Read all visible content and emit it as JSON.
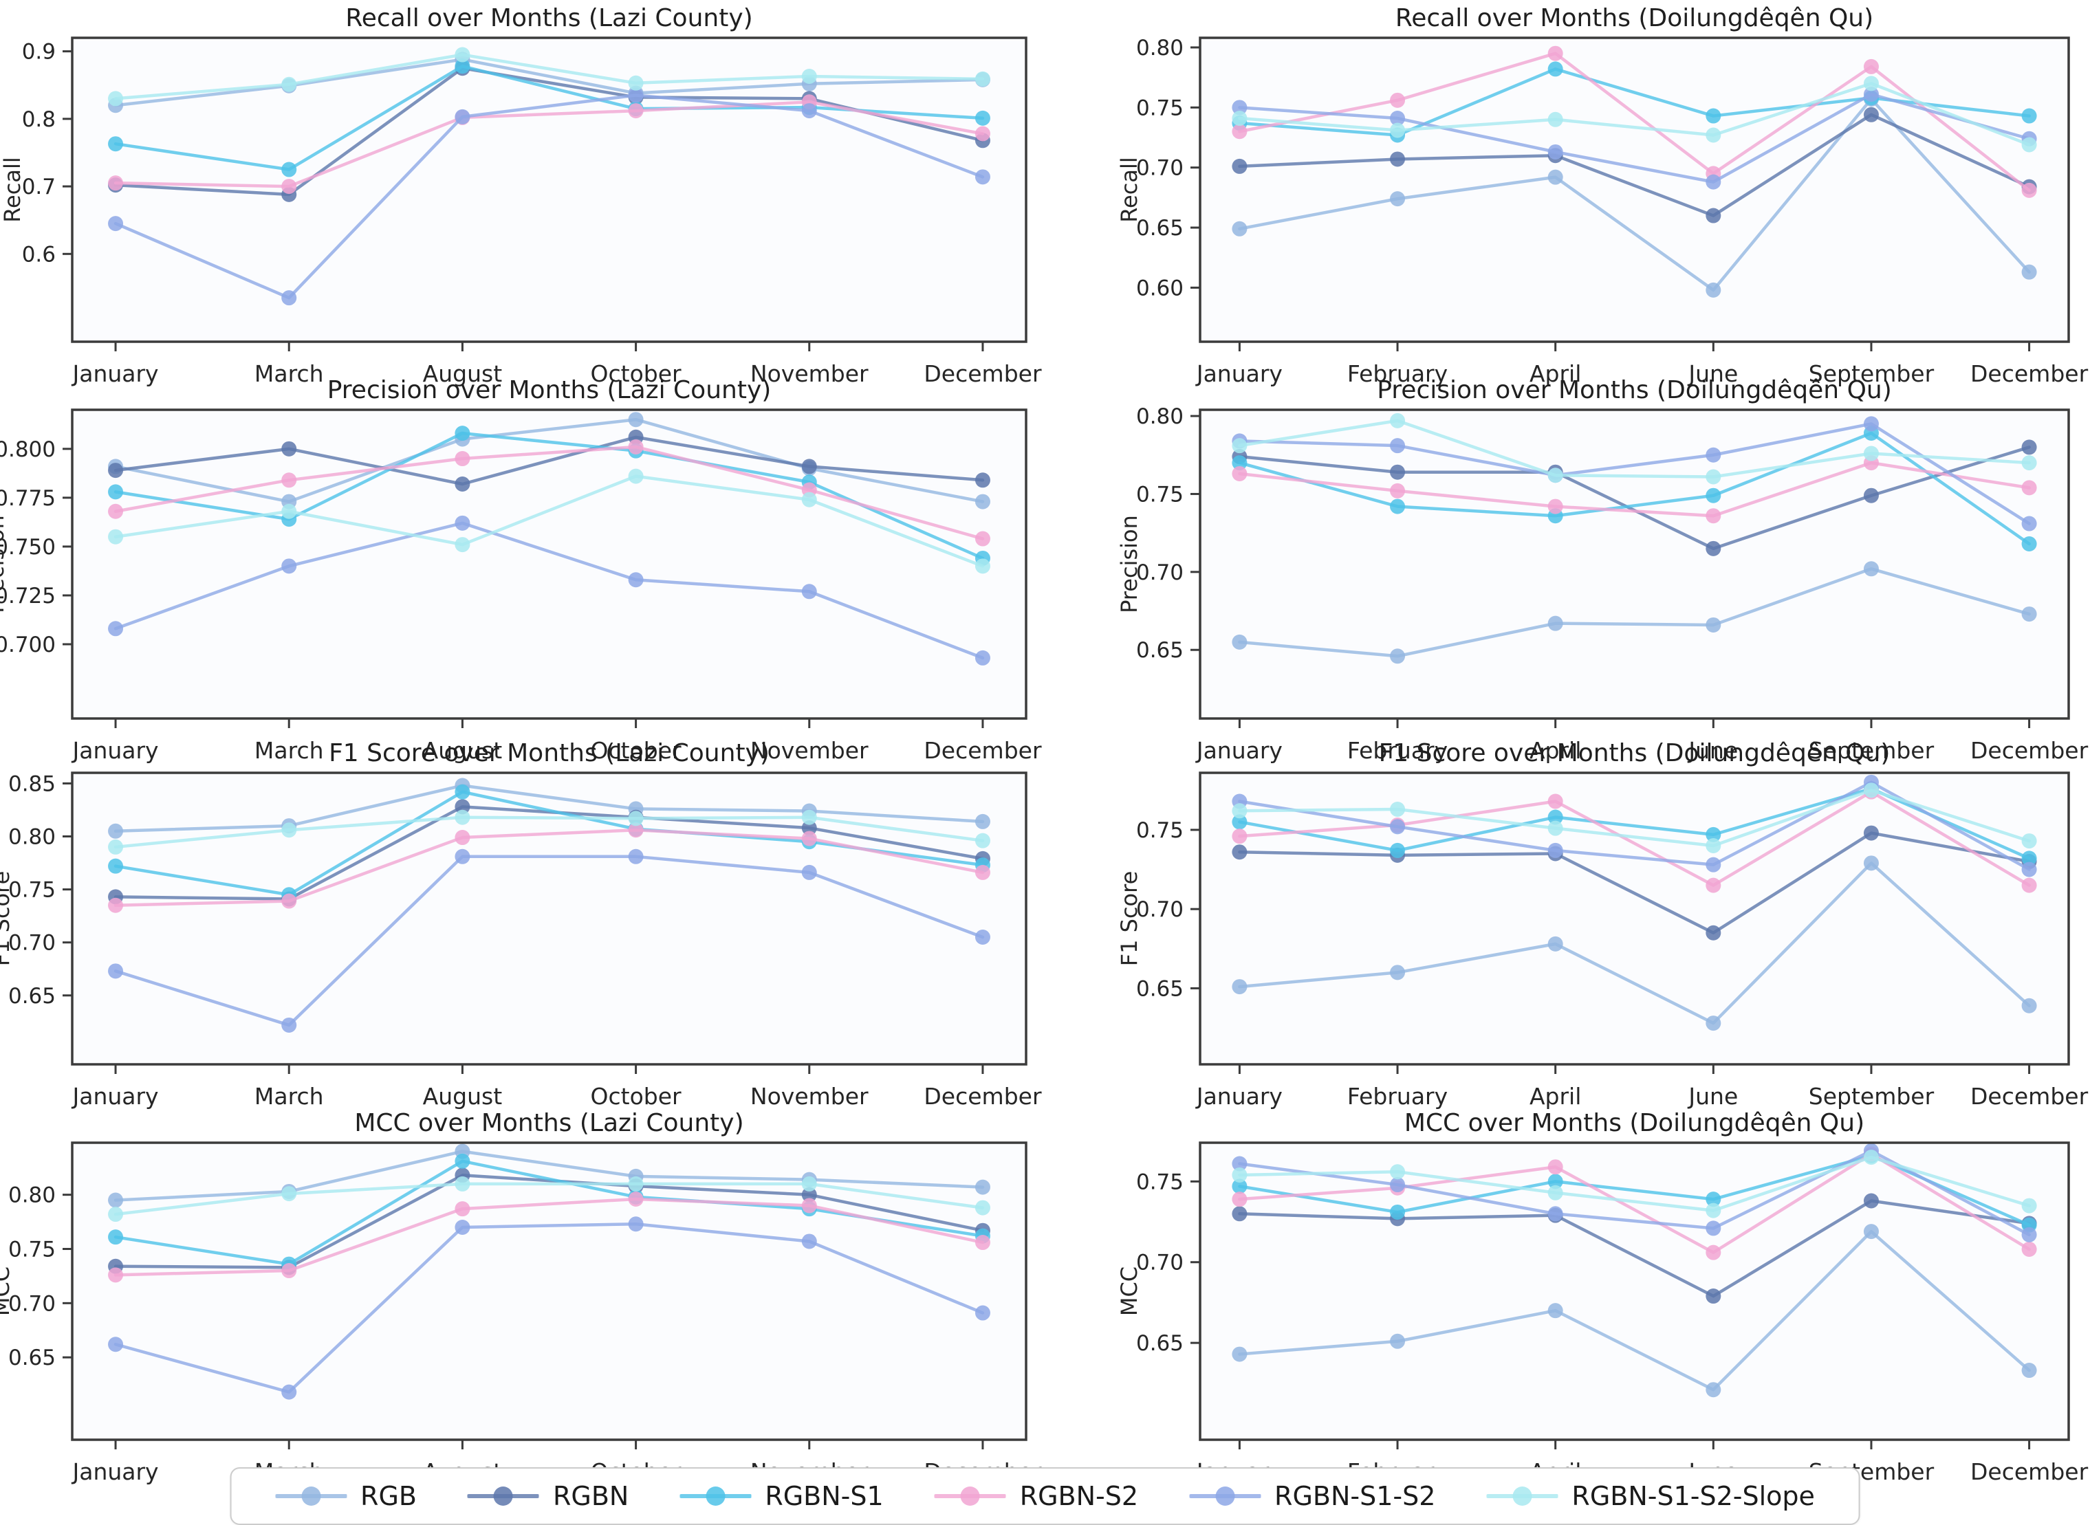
{
  "figure": {
    "background": "#ffffff",
    "kind": "metric-comparison-grid",
    "rows": 4,
    "columns": 2
  },
  "style": {
    "spine_color": "#3b3b3b",
    "text_color": "#262626",
    "title_color": "#1f1f1f",
    "axes_background": "#fbfcfe",
    "legend_border": "#cccccc",
    "line_opacity": 0.8,
    "marker_opacity": 0.85
  },
  "legend": {
    "position": "bottom-center",
    "items": [
      {
        "label": "RGB",
        "color": "#94b6e1"
      },
      {
        "label": "RGBN",
        "color": "#5d77ab"
      },
      {
        "label": "RGBN-S1",
        "color": "#4dc2e8"
      },
      {
        "label": "RGBN-S2",
        "color": "#f1a5d2"
      },
      {
        "label": "RGBN-S1-S2",
        "color": "#8da7e6"
      },
      {
        "label": "RGBN-S1-S2-Slope",
        "color": "#a8e9f0"
      }
    ]
  },
  "chart_data": [
    {
      "type": "line",
      "title": "Recall over Months (Lazi County)",
      "xlabel": "",
      "ylabel": "Recall",
      "grid": false,
      "legend_position": "shared-bottom",
      "categories": [
        "January",
        "March",
        "August",
        "October",
        "November",
        "December"
      ],
      "ylim": [
        0.47,
        0.92
      ],
      "yticks": [
        0.6,
        0.7,
        0.8,
        0.9
      ],
      "ytick_decimals": 1,
      "series": [
        {
          "name": "RGB",
          "values": [
            0.82,
            0.849,
            0.888,
            0.838,
            0.852,
            0.858
          ]
        },
        {
          "name": "RGBN",
          "values": [
            0.702,
            0.688,
            0.875,
            0.832,
            0.83,
            0.768
          ]
        },
        {
          "name": "RGBN-S1",
          "values": [
            0.763,
            0.725,
            0.878,
            0.815,
            0.817,
            0.801
          ]
        },
        {
          "name": "RGBN-S2",
          "values": [
            0.705,
            0.7,
            0.802,
            0.812,
            0.825,
            0.778
          ]
        },
        {
          "name": "RGBN-S1-S2",
          "values": [
            0.645,
            0.535,
            0.803,
            0.835,
            0.812,
            0.714
          ]
        },
        {
          "name": "RGBN-S1-S2-Slope",
          "values": [
            0.83,
            0.851,
            0.895,
            0.853,
            0.863,
            0.859
          ]
        }
      ]
    },
    {
      "type": "line",
      "title": "Recall over Months (Doilungdêqên Qu)",
      "xlabel": "",
      "ylabel": "Recall",
      "grid": false,
      "legend_position": "shared-bottom",
      "categories": [
        "January",
        "February",
        "April",
        "June",
        "September",
        "December"
      ],
      "ylim": [
        0.555,
        0.808
      ],
      "yticks": [
        0.6,
        0.65,
        0.7,
        0.75,
        0.8
      ],
      "ytick_decimals": 2,
      "series": [
        {
          "name": "RGB",
          "values": [
            0.649,
            0.674,
            0.692,
            0.598,
            0.757,
            0.613
          ]
        },
        {
          "name": "RGBN",
          "values": [
            0.701,
            0.707,
            0.71,
            0.66,
            0.744,
            0.684
          ]
        },
        {
          "name": "RGBN-S1",
          "values": [
            0.737,
            0.727,
            0.782,
            0.743,
            0.758,
            0.743
          ]
        },
        {
          "name": "RGBN-S2",
          "values": [
            0.73,
            0.756,
            0.795,
            0.695,
            0.784,
            0.681
          ]
        },
        {
          "name": "RGBN-S1-S2",
          "values": [
            0.75,
            0.741,
            0.713,
            0.688,
            0.761,
            0.724
          ]
        },
        {
          "name": "RGBN-S1-S2-Slope",
          "values": [
            0.741,
            0.731,
            0.74,
            0.727,
            0.77,
            0.719
          ]
        }
      ]
    },
    {
      "type": "line",
      "title": "Precision over Months (Lazi County)",
      "xlabel": "",
      "ylabel": "Precision",
      "grid": false,
      "legend_position": "shared-bottom",
      "categories": [
        "January",
        "March",
        "August",
        "October",
        "November",
        "December"
      ],
      "ylim": [
        0.662,
        0.82
      ],
      "yticks": [
        0.7,
        0.725,
        0.75,
        0.775,
        0.8
      ],
      "ytick_decimals": 3,
      "series": [
        {
          "name": "RGB",
          "values": [
            0.791,
            0.773,
            0.805,
            0.815,
            0.79,
            0.773
          ]
        },
        {
          "name": "RGBN",
          "values": [
            0.789,
            0.8,
            0.782,
            0.806,
            0.791,
            0.784
          ]
        },
        {
          "name": "RGBN-S1",
          "values": [
            0.778,
            0.764,
            0.808,
            0.799,
            0.783,
            0.744
          ]
        },
        {
          "name": "RGBN-S2",
          "values": [
            0.768,
            0.784,
            0.795,
            0.801,
            0.779,
            0.754
          ]
        },
        {
          "name": "RGBN-S1-S2",
          "values": [
            0.708,
            0.74,
            0.762,
            0.733,
            0.727,
            0.693
          ]
        },
        {
          "name": "RGBN-S1-S2-Slope",
          "values": [
            0.755,
            0.768,
            0.751,
            0.786,
            0.774,
            0.74
          ]
        }
      ]
    },
    {
      "type": "line",
      "title": "Precision over Months (Doilungdêqên Qu)",
      "xlabel": "",
      "ylabel": "Precision",
      "grid": false,
      "legend_position": "shared-bottom",
      "categories": [
        "January",
        "February",
        "April",
        "June",
        "September",
        "December"
      ],
      "ylim": [
        0.606,
        0.804
      ],
      "yticks": [
        0.65,
        0.7,
        0.75,
        0.8
      ],
      "ytick_decimals": 2,
      "series": [
        {
          "name": "RGB",
          "values": [
            0.655,
            0.646,
            0.667,
            0.666,
            0.702,
            0.673
          ]
        },
        {
          "name": "RGBN",
          "values": [
            0.774,
            0.764,
            0.764,
            0.715,
            0.749,
            0.78
          ]
        },
        {
          "name": "RGBN-S1",
          "values": [
            0.77,
            0.742,
            0.736,
            0.749,
            0.789,
            0.718
          ]
        },
        {
          "name": "RGBN-S2",
          "values": [
            0.763,
            0.752,
            0.742,
            0.736,
            0.77,
            0.754
          ]
        },
        {
          "name": "RGBN-S1-S2",
          "values": [
            0.784,
            0.781,
            0.762,
            0.775,
            0.795,
            0.731
          ]
        },
        {
          "name": "RGBN-S1-S2-Slope",
          "values": [
            0.781,
            0.797,
            0.762,
            0.761,
            0.776,
            0.77
          ]
        }
      ]
    },
    {
      "type": "line",
      "title": "F1 Score over Months (Lazi County)",
      "xlabel": "",
      "ylabel": "F1 Score",
      "grid": false,
      "legend_position": "shared-bottom",
      "categories": [
        "January",
        "March",
        "August",
        "October",
        "November",
        "December"
      ],
      "ylim": [
        0.585,
        0.86
      ],
      "yticks": [
        0.65,
        0.7,
        0.75,
        0.8,
        0.85
      ],
      "ytick_decimals": 2,
      "series": [
        {
          "name": "RGB",
          "values": [
            0.805,
            0.81,
            0.848,
            0.826,
            0.824,
            0.814
          ]
        },
        {
          "name": "RGBN",
          "values": [
            0.743,
            0.741,
            0.828,
            0.818,
            0.808,
            0.779
          ]
        },
        {
          "name": "RGBN-S1",
          "values": [
            0.772,
            0.745,
            0.842,
            0.807,
            0.795,
            0.773
          ]
        },
        {
          "name": "RGBN-S2",
          "values": [
            0.735,
            0.739,
            0.799,
            0.806,
            0.798,
            0.766
          ]
        },
        {
          "name": "RGBN-S1-S2",
          "values": [
            0.673,
            0.622,
            0.781,
            0.781,
            0.766,
            0.705
          ]
        },
        {
          "name": "RGBN-S1-S2-Slope",
          "values": [
            0.79,
            0.806,
            0.818,
            0.817,
            0.818,
            0.796
          ]
        }
      ]
    },
    {
      "type": "line",
      "title": "F1 Score over Months (Doilungdêqên Qu)",
      "xlabel": "",
      "ylabel": "F1 Score",
      "grid": false,
      "legend_position": "shared-bottom",
      "categories": [
        "January",
        "February",
        "April",
        "June",
        "September",
        "December"
      ],
      "ylim": [
        0.602,
        0.786
      ],
      "yticks": [
        0.65,
        0.7,
        0.75
      ],
      "ytick_decimals": 2,
      "series": [
        {
          "name": "RGB",
          "values": [
            0.651,
            0.66,
            0.678,
            0.628,
            0.729,
            0.639
          ]
        },
        {
          "name": "RGBN",
          "values": [
            0.736,
            0.734,
            0.735,
            0.685,
            0.748,
            0.73
          ]
        },
        {
          "name": "RGBN-S1",
          "values": [
            0.755,
            0.737,
            0.758,
            0.747,
            0.776,
            0.732
          ]
        },
        {
          "name": "RGBN-S2",
          "values": [
            0.746,
            0.753,
            0.768,
            0.715,
            0.774,
            0.715
          ]
        },
        {
          "name": "RGBN-S1-S2",
          "values": [
            0.768,
            0.752,
            0.737,
            0.728,
            0.78,
            0.725
          ]
        },
        {
          "name": "RGBN-S1-S2-Slope",
          "values": [
            0.762,
            0.763,
            0.751,
            0.74,
            0.775,
            0.743
          ]
        }
      ]
    },
    {
      "type": "line",
      "title": "MCC over Months (Lazi County)",
      "xlabel": "",
      "ylabel": "MCC",
      "grid": false,
      "legend_position": "shared-bottom",
      "categories": [
        "January",
        "March",
        "August",
        "October",
        "November",
        "December"
      ],
      "ylim": [
        0.574,
        0.848
      ],
      "yticks": [
        0.65,
        0.7,
        0.75,
        0.8
      ],
      "ytick_decimals": 2,
      "series": [
        {
          "name": "RGB",
          "values": [
            0.795,
            0.803,
            0.84,
            0.817,
            0.814,
            0.807
          ]
        },
        {
          "name": "RGBN",
          "values": [
            0.734,
            0.733,
            0.818,
            0.808,
            0.8,
            0.767
          ]
        },
        {
          "name": "RGBN-S1",
          "values": [
            0.761,
            0.736,
            0.831,
            0.798,
            0.787,
            0.762
          ]
        },
        {
          "name": "RGBN-S2",
          "values": [
            0.726,
            0.73,
            0.787,
            0.796,
            0.79,
            0.756
          ]
        },
        {
          "name": "RGBN-S1-S2",
          "values": [
            0.662,
            0.618,
            0.77,
            0.773,
            0.757,
            0.691
          ]
        },
        {
          "name": "RGBN-S1-S2-Slope",
          "values": [
            0.782,
            0.801,
            0.81,
            0.81,
            0.81,
            0.788
          ]
        }
      ]
    },
    {
      "type": "line",
      "title": "MCC over Months (Doilungdêqên Qu)",
      "xlabel": "",
      "ylabel": "MCC",
      "grid": false,
      "legend_position": "shared-bottom",
      "categories": [
        "January",
        "February",
        "April",
        "June",
        "September",
        "December"
      ],
      "ylim": [
        0.59,
        0.774
      ],
      "yticks": [
        0.65,
        0.7,
        0.75
      ],
      "ytick_decimals": 2,
      "series": [
        {
          "name": "RGB",
          "values": [
            0.643,
            0.651,
            0.67,
            0.621,
            0.719,
            0.633
          ]
        },
        {
          "name": "RGBN",
          "values": [
            0.73,
            0.727,
            0.729,
            0.679,
            0.738,
            0.724
          ]
        },
        {
          "name": "RGBN-S1",
          "values": [
            0.747,
            0.731,
            0.75,
            0.739,
            0.766,
            0.723
          ]
        },
        {
          "name": "RGBN-S2",
          "values": [
            0.739,
            0.746,
            0.759,
            0.706,
            0.767,
            0.708
          ]
        },
        {
          "name": "RGBN-S1-S2",
          "values": [
            0.761,
            0.748,
            0.73,
            0.721,
            0.769,
            0.717
          ]
        },
        {
          "name": "RGBN-S1-S2-Slope",
          "values": [
            0.754,
            0.756,
            0.743,
            0.732,
            0.765,
            0.735
          ]
        }
      ]
    }
  ]
}
